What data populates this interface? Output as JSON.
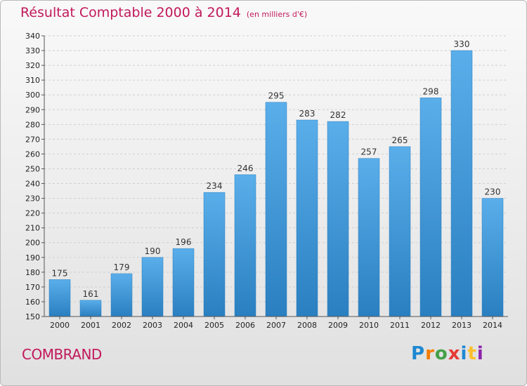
{
  "chart_data": {
    "type": "bar",
    "title": "Résultat Comptable 2000 à 2014",
    "subtitle": "(en milliers d'€)",
    "categories": [
      "2000",
      "2001",
      "2002",
      "2003",
      "2004",
      "2005",
      "2006",
      "2007",
      "2008",
      "2009",
      "2010",
      "2011",
      "2012",
      "2013",
      "2014"
    ],
    "values": [
      175,
      161,
      179,
      190,
      196,
      234,
      246,
      295,
      283,
      282,
      257,
      265,
      298,
      330,
      230
    ],
    "ylim": [
      150,
      340
    ],
    "ytick_step": 10,
    "xlabel": "",
    "ylabel": "",
    "grid": true,
    "bar_color_top": "#5aaeea",
    "bar_color_bottom": "#2a7fc0"
  },
  "commune": "COMBRAND",
  "brand": {
    "letters": [
      "P",
      "r",
      "o",
      "x",
      "i",
      "t",
      "i"
    ],
    "colors": [
      "#1e88d2",
      "#f57c00",
      "#43a047",
      "#e53935",
      "#1e88d2",
      "#fbc02d",
      "#8e24aa"
    ]
  }
}
